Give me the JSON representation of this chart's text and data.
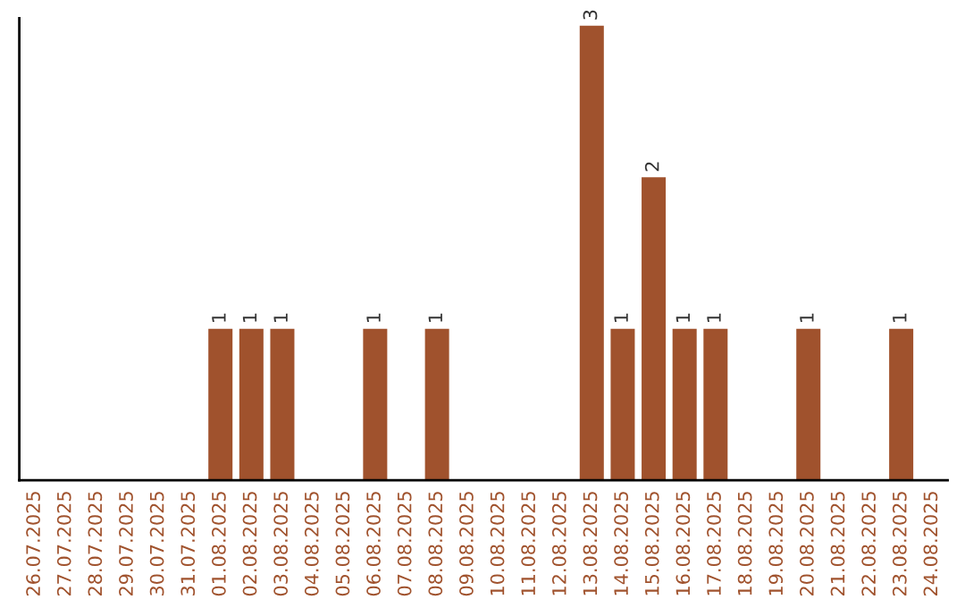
{
  "chart_data": {
    "type": "bar",
    "categories": [
      "26.07.2025",
      "27.07.2025",
      "28.07.2025",
      "29.07.2025",
      "30.07.2025",
      "31.07.2025",
      "01.08.2025",
      "02.08.2025",
      "03.08.2025",
      "04.08.2025",
      "05.08.2025",
      "06.08.2025",
      "07.08.2025",
      "08.08.2025",
      "09.08.2025",
      "10.08.2025",
      "11.08.2025",
      "12.08.2025",
      "13.08.2025",
      "14.08.2025",
      "15.08.2025",
      "16.08.2025",
      "17.08.2025",
      "18.08.2025",
      "19.08.2025",
      "20.08.2025",
      "21.08.2025",
      "22.08.2025",
      "23.08.2025",
      "24.08.2025"
    ],
    "values": [
      null,
      null,
      null,
      null,
      null,
      null,
      1,
      1,
      1,
      null,
      null,
      1,
      null,
      1,
      null,
      null,
      null,
      null,
      3,
      1,
      2,
      1,
      1,
      null,
      null,
      1,
      null,
      null,
      1,
      null
    ],
    "value_labels": [
      null,
      null,
      null,
      null,
      null,
      null,
      "1",
      "1",
      "1",
      null,
      null,
      "1",
      null,
      "1",
      null,
      null,
      null,
      null,
      "3",
      "1",
      "2",
      "1",
      "1",
      null,
      null,
      "1",
      null,
      null,
      "1",
      null
    ],
    "color": "#a0522d",
    "ylim": [
      0,
      3.05
    ],
    "tick_labels": "x",
    "grid": false,
    "legend": false
  }
}
